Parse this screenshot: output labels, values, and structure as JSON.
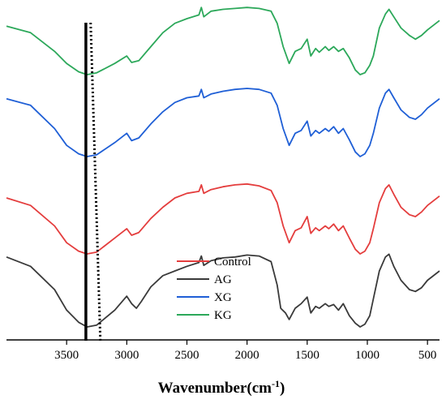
{
  "chart_data": {
    "type": "line",
    "title": "",
    "xlabel": "Wavenumber(cm⁻¹)",
    "xlabel_main": "Wavenumber(cm",
    "xlabel_sup": "-1",
    "xlabel_close": ")",
    "ylabel": "",
    "xlim": [
      4000,
      400
    ],
    "x_reversed": true,
    "x_ticks": [
      3500,
      3000,
      2500,
      2000,
      1500,
      1000,
      500
    ],
    "x_tick_labels": [
      "3500",
      "3000",
      "2500",
      "2000",
      "1500",
      "1000",
      "500"
    ],
    "grid": false,
    "legend_position": "center-bottom",
    "reference_lines": [
      {
        "style": "solid",
        "x": 3340
      },
      {
        "style": "dotted",
        "x": 3260
      }
    ],
    "series": [
      {
        "name": "KG",
        "color": "#2ca85a",
        "offset": 3,
        "points": [
          [
            4000,
            0.52
          ],
          [
            3800,
            0.45
          ],
          [
            3600,
            0.25
          ],
          [
            3500,
            0.12
          ],
          [
            3400,
            0.03
          ],
          [
            3330,
            0.0
          ],
          [
            3250,
            0.02
          ],
          [
            3100,
            0.12
          ],
          [
            3000,
            0.2
          ],
          [
            2960,
            0.13
          ],
          [
            2900,
            0.15
          ],
          [
            2800,
            0.3
          ],
          [
            2700,
            0.45
          ],
          [
            2600,
            0.55
          ],
          [
            2500,
            0.6
          ],
          [
            2400,
            0.64
          ],
          [
            2380,
            0.72
          ],
          [
            2360,
            0.62
          ],
          [
            2300,
            0.68
          ],
          [
            2200,
            0.7
          ],
          [
            2100,
            0.71
          ],
          [
            2000,
            0.72
          ],
          [
            1900,
            0.71
          ],
          [
            1800,
            0.68
          ],
          [
            1750,
            0.55
          ],
          [
            1700,
            0.3
          ],
          [
            1650,
            0.12
          ],
          [
            1600,
            0.25
          ],
          [
            1550,
            0.28
          ],
          [
            1500,
            0.38
          ],
          [
            1470,
            0.2
          ],
          [
            1430,
            0.28
          ],
          [
            1400,
            0.24
          ],
          [
            1350,
            0.3
          ],
          [
            1320,
            0.26
          ],
          [
            1280,
            0.3
          ],
          [
            1240,
            0.25
          ],
          [
            1200,
            0.28
          ],
          [
            1150,
            0.18
          ],
          [
            1100,
            0.05
          ],
          [
            1060,
            0.0
          ],
          [
            1020,
            0.02
          ],
          [
            980,
            0.1
          ],
          [
            950,
            0.2
          ],
          [
            900,
            0.5
          ],
          [
            850,
            0.65
          ],
          [
            820,
            0.7
          ],
          [
            780,
            0.62
          ],
          [
            720,
            0.5
          ],
          [
            650,
            0.42
          ],
          [
            600,
            0.38
          ],
          [
            550,
            0.42
          ],
          [
            500,
            0.48
          ],
          [
            400,
            0.58
          ]
        ]
      },
      {
        "name": "XG",
        "color": "#1f5fd6",
        "offset": 2,
        "points": [
          [
            4000,
            0.62
          ],
          [
            3800,
            0.55
          ],
          [
            3600,
            0.3
          ],
          [
            3500,
            0.12
          ],
          [
            3400,
            0.03
          ],
          [
            3330,
            0.0
          ],
          [
            3250,
            0.02
          ],
          [
            3100,
            0.15
          ],
          [
            3000,
            0.25
          ],
          [
            2960,
            0.17
          ],
          [
            2900,
            0.2
          ],
          [
            2800,
            0.35
          ],
          [
            2700,
            0.48
          ],
          [
            2600,
            0.58
          ],
          [
            2500,
            0.63
          ],
          [
            2400,
            0.65
          ],
          [
            2380,
            0.72
          ],
          [
            2360,
            0.63
          ],
          [
            2300,
            0.67
          ],
          [
            2200,
            0.7
          ],
          [
            2100,
            0.72
          ],
          [
            2000,
            0.73
          ],
          [
            1900,
            0.72
          ],
          [
            1800,
            0.68
          ],
          [
            1750,
            0.55
          ],
          [
            1700,
            0.3
          ],
          [
            1650,
            0.12
          ],
          [
            1600,
            0.25
          ],
          [
            1550,
            0.28
          ],
          [
            1500,
            0.38
          ],
          [
            1470,
            0.22
          ],
          [
            1430,
            0.28
          ],
          [
            1400,
            0.25
          ],
          [
            1350,
            0.3
          ],
          [
            1320,
            0.27
          ],
          [
            1280,
            0.32
          ],
          [
            1240,
            0.25
          ],
          [
            1200,
            0.3
          ],
          [
            1150,
            0.18
          ],
          [
            1100,
            0.05
          ],
          [
            1060,
            0.0
          ],
          [
            1020,
            0.03
          ],
          [
            980,
            0.12
          ],
          [
            950,
            0.25
          ],
          [
            900,
            0.52
          ],
          [
            850,
            0.68
          ],
          [
            820,
            0.72
          ],
          [
            780,
            0.63
          ],
          [
            720,
            0.5
          ],
          [
            650,
            0.42
          ],
          [
            600,
            0.4
          ],
          [
            550,
            0.45
          ],
          [
            500,
            0.52
          ],
          [
            400,
            0.62
          ]
        ]
      },
      {
        "name": "Control",
        "color": "#e43d3d",
        "offset": 1,
        "points": [
          [
            4000,
            0.6
          ],
          [
            3800,
            0.52
          ],
          [
            3600,
            0.3
          ],
          [
            3500,
            0.12
          ],
          [
            3400,
            0.03
          ],
          [
            3330,
            0.0
          ],
          [
            3250,
            0.02
          ],
          [
            3100,
            0.17
          ],
          [
            3000,
            0.27
          ],
          [
            2960,
            0.2
          ],
          [
            2900,
            0.23
          ],
          [
            2800,
            0.38
          ],
          [
            2700,
            0.5
          ],
          [
            2600,
            0.6
          ],
          [
            2500,
            0.65
          ],
          [
            2400,
            0.67
          ],
          [
            2380,
            0.74
          ],
          [
            2360,
            0.65
          ],
          [
            2300,
            0.69
          ],
          [
            2200,
            0.72
          ],
          [
            2100,
            0.74
          ],
          [
            2000,
            0.75
          ],
          [
            1900,
            0.73
          ],
          [
            1800,
            0.68
          ],
          [
            1750,
            0.55
          ],
          [
            1700,
            0.3
          ],
          [
            1650,
            0.12
          ],
          [
            1600,
            0.25
          ],
          [
            1550,
            0.28
          ],
          [
            1500,
            0.4
          ],
          [
            1470,
            0.22
          ],
          [
            1430,
            0.28
          ],
          [
            1400,
            0.25
          ],
          [
            1350,
            0.3
          ],
          [
            1320,
            0.27
          ],
          [
            1280,
            0.32
          ],
          [
            1240,
            0.25
          ],
          [
            1200,
            0.3
          ],
          [
            1150,
            0.17
          ],
          [
            1100,
            0.05
          ],
          [
            1060,
            0.0
          ],
          [
            1020,
            0.03
          ],
          [
            980,
            0.12
          ],
          [
            950,
            0.27
          ],
          [
            900,
            0.55
          ],
          [
            850,
            0.7
          ],
          [
            820,
            0.74
          ],
          [
            780,
            0.64
          ],
          [
            720,
            0.5
          ],
          [
            650,
            0.42
          ],
          [
            600,
            0.4
          ],
          [
            550,
            0.45
          ],
          [
            500,
            0.52
          ],
          [
            400,
            0.62
          ]
        ]
      },
      {
        "name": "AG",
        "color": "#3a3a3a",
        "offset": 0,
        "points": [
          [
            4000,
            0.75
          ],
          [
            3800,
            0.65
          ],
          [
            3600,
            0.4
          ],
          [
            3500,
            0.18
          ],
          [
            3400,
            0.05
          ],
          [
            3330,
            0.0
          ],
          [
            3250,
            0.02
          ],
          [
            3100,
            0.18
          ],
          [
            3000,
            0.33
          ],
          [
            2960,
            0.25
          ],
          [
            2920,
            0.2
          ],
          [
            2880,
            0.27
          ],
          [
            2800,
            0.43
          ],
          [
            2700,
            0.55
          ],
          [
            2600,
            0.6
          ],
          [
            2500,
            0.65
          ],
          [
            2400,
            0.69
          ],
          [
            2380,
            0.76
          ],
          [
            2360,
            0.66
          ],
          [
            2300,
            0.71
          ],
          [
            2200,
            0.74
          ],
          [
            2100,
            0.75
          ],
          [
            2000,
            0.77
          ],
          [
            1900,
            0.76
          ],
          [
            1800,
            0.7
          ],
          [
            1750,
            0.45
          ],
          [
            1720,
            0.2
          ],
          [
            1680,
            0.15
          ],
          [
            1650,
            0.08
          ],
          [
            1600,
            0.2
          ],
          [
            1550,
            0.25
          ],
          [
            1500,
            0.32
          ],
          [
            1470,
            0.15
          ],
          [
            1430,
            0.22
          ],
          [
            1400,
            0.2
          ],
          [
            1350,
            0.25
          ],
          [
            1320,
            0.22
          ],
          [
            1280,
            0.24
          ],
          [
            1240,
            0.18
          ],
          [
            1200,
            0.25
          ],
          [
            1150,
            0.12
          ],
          [
            1100,
            0.04
          ],
          [
            1060,
            0.0
          ],
          [
            1020,
            0.03
          ],
          [
            980,
            0.12
          ],
          [
            950,
            0.3
          ],
          [
            900,
            0.6
          ],
          [
            850,
            0.75
          ],
          [
            820,
            0.78
          ],
          [
            780,
            0.65
          ],
          [
            720,
            0.5
          ],
          [
            650,
            0.4
          ],
          [
            600,
            0.38
          ],
          [
            550,
            0.42
          ],
          [
            500,
            0.5
          ],
          [
            400,
            0.6
          ]
        ]
      }
    ],
    "legend": [
      {
        "label": "Control",
        "color": "#e43d3d"
      },
      {
        "label": "AG",
        "color": "#3a3a3a"
      },
      {
        "label": "XG",
        "color": "#1f5fd6"
      },
      {
        "label": "KG",
        "color": "#2ca85a"
      }
    ]
  }
}
